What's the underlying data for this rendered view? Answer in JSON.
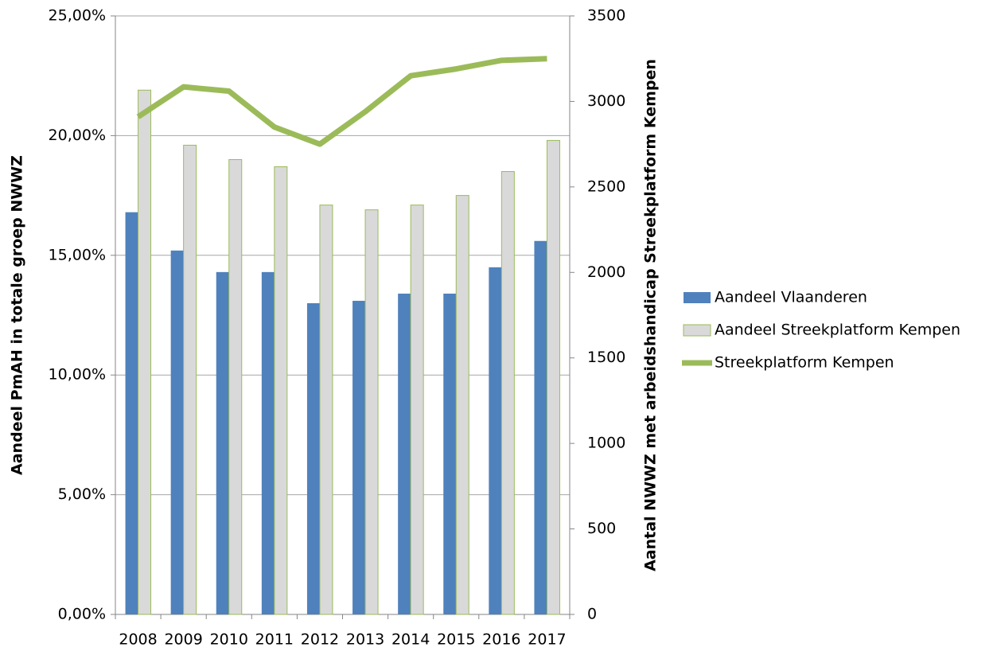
{
  "chart_data": {
    "type": "bar",
    "categories": [
      "2008",
      "2009",
      "2010",
      "2011",
      "2012",
      "2013",
      "2014",
      "2015",
      "2016",
      "2017"
    ],
    "series": [
      {
        "name": "Aandeel Vlaanderen",
        "type": "bar",
        "color": "#4f81bd",
        "values": [
          16.8,
          15.2,
          14.3,
          14.3,
          13.0,
          13.1,
          13.4,
          13.4,
          14.5,
          15.6
        ]
      },
      {
        "name": "Aandeel Streekplatform Kempen",
        "type": "bar",
        "color": "#d9d9d9",
        "values": [
          21.9,
          19.6,
          19.0,
          18.7,
          17.1,
          16.9,
          17.1,
          17.5,
          18.5,
          19.8
        ]
      },
      {
        "name": "Streekplatform Kempen",
        "type": "line",
        "axis": "y2",
        "color": "#9bbb59",
        "values": [
          2910,
          3085,
          3060,
          2850,
          2750,
          2940,
          3150,
          3190,
          3240,
          3250
        ]
      }
    ],
    "ylabel": "Aandeel PmAH in totale groep NWWZ",
    "y2label": "Aantal NWWZ met arbeidshandicap  Streekplatform Kempen",
    "ylim": [
      0,
      25
    ],
    "yticks": [
      {
        "value": 0,
        "label": "0,00%"
      },
      {
        "value": 5,
        "label": "5,00%"
      },
      {
        "value": 10,
        "label": "10,00%"
      },
      {
        "value": 15,
        "label": "15,00%"
      },
      {
        "value": 20,
        "label": "20,00%"
      },
      {
        "value": 25,
        "label": "25,00%"
      }
    ],
    "y2lim": [
      0,
      3500
    ],
    "y2ticks": [
      0,
      500,
      1000,
      1500,
      2000,
      2500,
      3000,
      3500
    ],
    "grid": true,
    "legend": "right"
  }
}
